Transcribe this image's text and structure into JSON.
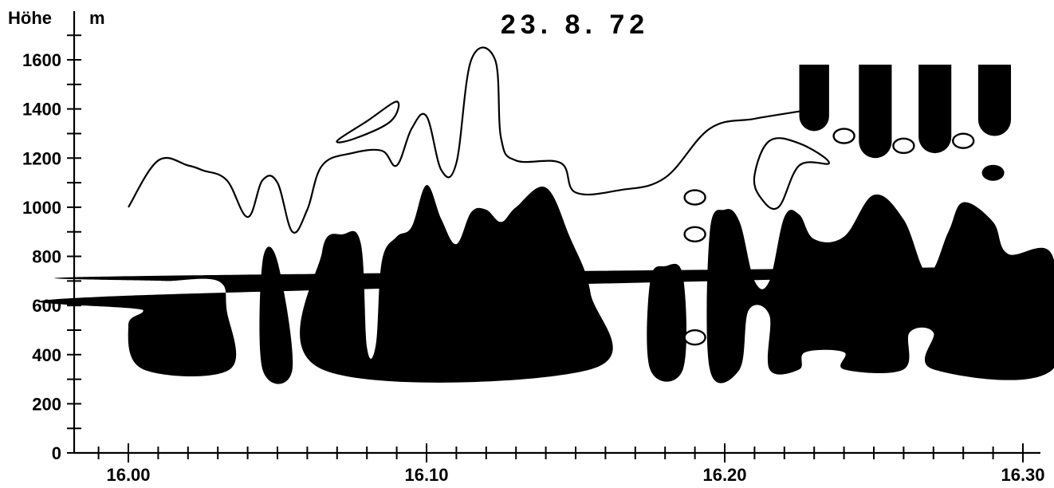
{
  "chart_data": {
    "type": "area",
    "title": "23. 8. 72",
    "ylabel": "Höhe",
    "yunit": "m",
    "xlabel": "",
    "xlim": [
      15.97,
      16.31
    ],
    "ylim": [
      0,
      1600
    ],
    "ytick_labels": [
      "0",
      "200",
      "400",
      "600",
      "800",
      "1000",
      "1200",
      "1400",
      "1600"
    ],
    "yticks": [
      0,
      200,
      400,
      600,
      800,
      1000,
      1200,
      1400,
      1600
    ],
    "xtick_labels": [
      "16.00",
      "16.10",
      "16.20",
      "16.30"
    ],
    "xticks": [
      16.0,
      16.1,
      16.2,
      16.3
    ],
    "x_minor_step_min": 1,
    "y_minor_step": 100,
    "grid": false,
    "series": [
      {
        "kind": "contour-line",
        "points": [
          [
            16.0,
            1000
          ],
          [
            16.01,
            1190
          ],
          [
            16.02,
            1170
          ],
          [
            16.025,
            1150
          ],
          [
            16.033,
            1110
          ],
          [
            16.04,
            960
          ],
          [
            16.045,
            1110
          ],
          [
            16.05,
            1100
          ],
          [
            16.055,
            900
          ],
          [
            16.06,
            990
          ],
          [
            16.065,
            1170
          ],
          [
            16.075,
            1220
          ],
          [
            16.085,
            1230
          ],
          [
            16.09,
            1170
          ],
          [
            16.095,
            1320
          ],
          [
            16.1,
            1370
          ],
          [
            16.105,
            1150
          ],
          [
            16.11,
            1180
          ],
          [
            16.115,
            1600
          ],
          [
            16.123,
            1600
          ],
          [
            16.125,
            1280
          ],
          [
            16.13,
            1190
          ],
          [
            16.145,
            1180
          ],
          [
            16.15,
            1060
          ],
          [
            16.165,
            1070
          ],
          [
            16.18,
            1120
          ],
          [
            16.195,
            1320
          ],
          [
            16.21,
            1360
          ],
          [
            16.225,
            1390
          ]
        ]
      },
      {
        "kind": "closed-contour",
        "points": [
          [
            16.07,
            1270
          ],
          [
            16.08,
            1350
          ],
          [
            16.09,
            1430
          ],
          [
            16.088,
            1350
          ],
          [
            16.076,
            1280
          ]
        ]
      },
      {
        "kind": "closed-contour",
        "points": [
          [
            16.21,
            1130
          ],
          [
            16.215,
            1270
          ],
          [
            16.225,
            1260
          ],
          [
            16.235,
            1180
          ],
          [
            16.225,
            1170
          ],
          [
            16.218,
            1000
          ],
          [
            16.212,
            1040
          ]
        ]
      },
      {
        "kind": "filled-region",
        "points": [
          [
            15.995,
            760
          ],
          [
            16.005,
            720
          ],
          [
            16.012,
            700
          ],
          [
            16.03,
            700
          ],
          [
            16.033,
            580
          ],
          [
            16.034,
            340
          ],
          [
            16.005,
            340
          ],
          [
            16.0,
            520
          ],
          [
            16.005,
            580
          ],
          [
            16.0,
            640
          ]
        ]
      },
      {
        "kind": "filled-region",
        "points": [
          [
            16.045,
            340
          ],
          [
            16.045,
            780
          ],
          [
            16.05,
            780
          ],
          [
            16.055,
            340
          ]
        ]
      },
      {
        "kind": "filled-region",
        "points": [
          [
            16.065,
            340
          ],
          [
            16.065,
            820
          ],
          [
            16.072,
            890
          ],
          [
            16.078,
            850
          ],
          [
            16.08,
            430
          ],
          [
            16.083,
            440
          ],
          [
            16.085,
            780
          ],
          [
            16.09,
            880
          ],
          [
            16.095,
            920
          ],
          [
            16.1,
            1090
          ],
          [
            16.105,
            950
          ],
          [
            16.11,
            850
          ],
          [
            16.115,
            980
          ],
          [
            16.12,
            990
          ],
          [
            16.125,
            940
          ],
          [
            16.13,
            1000
          ],
          [
            16.14,
            1080
          ],
          [
            16.148,
            880
          ],
          [
            16.155,
            650
          ],
          [
            16.155,
            340
          ]
        ]
      },
      {
        "kind": "filled-region",
        "points": [
          [
            16.175,
            340
          ],
          [
            16.175,
            700
          ],
          [
            16.18,
            760
          ],
          [
            16.186,
            720
          ],
          [
            16.186,
            340
          ]
        ]
      },
      {
        "kind": "filled-region",
        "points": [
          [
            16.195,
            340
          ],
          [
            16.195,
            900
          ],
          [
            16.2,
            990
          ],
          [
            16.205,
            940
          ],
          [
            16.21,
            700
          ],
          [
            16.215,
            700
          ],
          [
            16.22,
            960
          ],
          [
            16.225,
            970
          ],
          [
            16.23,
            870
          ],
          [
            16.24,
            880
          ],
          [
            16.25,
            1050
          ],
          [
            16.26,
            950
          ],
          [
            16.268,
            730
          ],
          [
            16.275,
            900
          ],
          [
            16.28,
            1020
          ],
          [
            16.29,
            940
          ],
          [
            16.295,
            810
          ],
          [
            16.31,
            800
          ],
          [
            16.31,
            340
          ],
          [
            16.27,
            340
          ],
          [
            16.27,
            490
          ],
          [
            16.262,
            490
          ],
          [
            16.26,
            340
          ],
          [
            16.24,
            340
          ],
          [
            16.24,
            410
          ],
          [
            16.227,
            410
          ],
          [
            16.225,
            340
          ],
          [
            16.215,
            340
          ],
          [
            16.215,
            560
          ],
          [
            16.208,
            580
          ],
          [
            16.205,
            340
          ]
        ]
      },
      {
        "kind": "filled-lobe",
        "x_range": [
          16.225,
          16.235
        ],
        "y_bottom": 1310,
        "y_top": 1580
      },
      {
        "kind": "filled-lobe",
        "x_range": [
          16.245,
          16.256
        ],
        "y_bottom": 1200,
        "y_top": 1580
      },
      {
        "kind": "filled-lobe",
        "x_range": [
          16.265,
          16.276
        ],
        "y_bottom": 1220,
        "y_top": 1580
      },
      {
        "kind": "filled-lobe",
        "x_range": [
          16.285,
          16.296
        ],
        "y_bottom": 1290,
        "y_top": 1580
      },
      {
        "kind": "filled-dot",
        "x": 16.29,
        "y": 1140
      },
      {
        "kind": "ring",
        "x": 16.19,
        "y": 1040
      },
      {
        "kind": "ring",
        "x": 16.19,
        "y": 890
      },
      {
        "kind": "ring",
        "x": 16.19,
        "y": 470
      },
      {
        "kind": "ring",
        "x": 16.24,
        "y": 1290
      },
      {
        "kind": "ring",
        "x": 16.26,
        "y": 1250
      },
      {
        "kind": "ring",
        "x": 16.28,
        "y": 1270
      }
    ]
  }
}
